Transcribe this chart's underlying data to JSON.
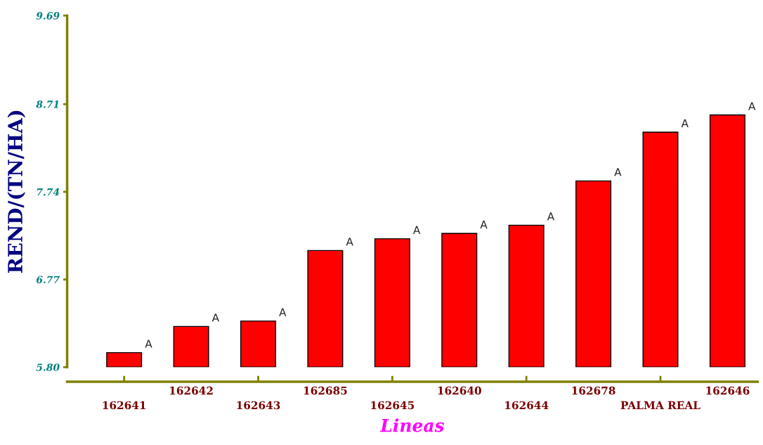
{
  "chart_data": {
    "type": "bar",
    "xlabel": "Lineas",
    "ylabel": "REND/(TN/HA)",
    "categories": [
      "162641",
      "162642",
      "162643",
      "162685",
      "162645",
      "162640",
      "162644",
      "162678",
      "PALMA REAL",
      "162646"
    ],
    "values": [
      5.96,
      6.25,
      6.31,
      7.09,
      7.22,
      7.28,
      7.37,
      7.86,
      8.4,
      8.59
    ],
    "value_labels": [
      "A",
      "A",
      "A",
      "A",
      "A",
      "A",
      "A",
      "A",
      "A",
      "A"
    ],
    "color": "#ff0000",
    "ylim": [
      5.8,
      9.69
    ],
    "yticks": [
      {
        "value": 5.8,
        "label": "5.80"
      },
      6.77,
      7.74,
      8.71,
      9.69
    ],
    "grid": false,
    "legend": false
  }
}
